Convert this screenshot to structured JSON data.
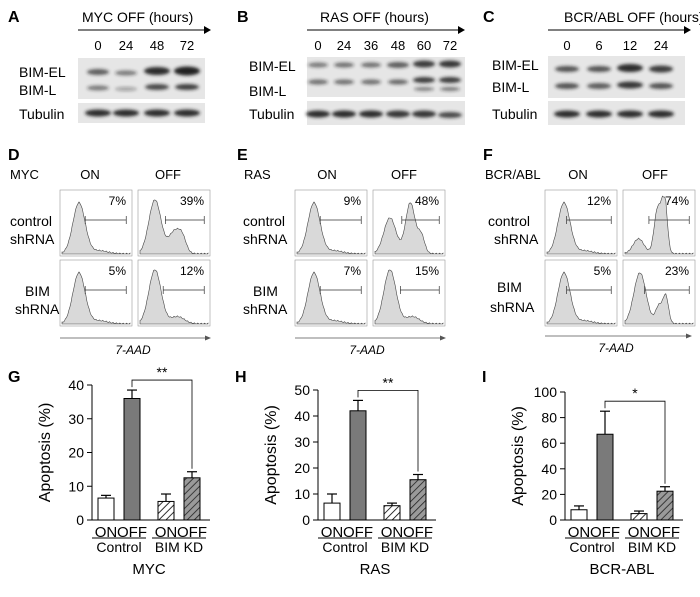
{
  "panels": {
    "A": {
      "letter": "A",
      "header": "MYC OFF (hours)",
      "times": [
        "0",
        "24",
        "48",
        "72"
      ],
      "rows": [
        "BIM-EL",
        "BIM-L",
        "Tubulin"
      ]
    },
    "B": {
      "letter": "B",
      "header": "RAS OFF (hours)",
      "times": [
        "0",
        "24",
        "36",
        "48",
        "60",
        "72"
      ],
      "rows": [
        "BIM-EL",
        "BIM-L",
        "Tubulin"
      ]
    },
    "C": {
      "letter": "C",
      "header": "BCR/ABL OFF (hours)",
      "times": [
        "0",
        "6",
        "12",
        "24"
      ],
      "rows": [
        "BIM-EL",
        "BIM-L",
        "Tubulin"
      ]
    },
    "D": {
      "letter": "D",
      "oncogene": "MYC",
      "on": "ON",
      "off": "OFF",
      "row1": [
        "control",
        "shRNA"
      ],
      "row2": [
        "BIM",
        "shRNA"
      ],
      "pct": [
        "7%",
        "39%",
        "5%",
        "12%"
      ],
      "xlabel": "7-AAD"
    },
    "E": {
      "letter": "E",
      "oncogene": "RAS",
      "on": "ON",
      "off": "OFF",
      "row1": [
        "control",
        "shRNA"
      ],
      "row2": [
        "BIM",
        "shRNA"
      ],
      "pct": [
        "9%",
        "48%",
        "7%",
        "15%"
      ],
      "xlabel": "7-AAD"
    },
    "F": {
      "letter": "F",
      "oncogene": "BCR/ABL",
      "on": "ON",
      "off": "OFF",
      "row1": [
        "control",
        "shRNA"
      ],
      "row2": [
        "BIM",
        "shRNA"
      ],
      "pct": [
        "12%",
        "74%",
        "5%",
        "23%"
      ],
      "xlabel": "7-AAD"
    }
  },
  "chart_data": [
    {
      "type": "bar",
      "letter": "G",
      "ylabel": "Apoptosis (%)",
      "ylim": [
        0,
        40
      ],
      "yticks": [
        "0",
        "10",
        "20",
        "30",
        "40"
      ],
      "categories": [
        "ON",
        "OFF",
        "ON",
        "OFF"
      ],
      "groups": [
        "Control",
        "BIM KD"
      ],
      "values": [
        6.5,
        36,
        5.5,
        12.5
      ],
      "errors": [
        0.8,
        2.5,
        2.2,
        1.8
      ],
      "significance": "**",
      "xlabel": "MYC"
    },
    {
      "type": "bar",
      "letter": "H",
      "ylabel": "Apoptosis (%)",
      "ylim": [
        0,
        50
      ],
      "yticks": [
        "0",
        "10",
        "20",
        "30",
        "40",
        "50"
      ],
      "categories": [
        "ON",
        "OFF",
        "ON",
        "OFF"
      ],
      "groups": [
        "Control",
        "BIM KD"
      ],
      "values": [
        6.5,
        42,
        5.5,
        15.5
      ],
      "errors": [
        3.5,
        4,
        1,
        2
      ],
      "significance": "**",
      "xlabel": "RAS"
    },
    {
      "type": "bar",
      "letter": "I",
      "ylabel": "Apoptosis (%)",
      "ylim": [
        0,
        100
      ],
      "yticks": [
        "0",
        "20",
        "40",
        "60",
        "80",
        "100"
      ],
      "categories": [
        "ON",
        "OFF",
        "ON",
        "OFF"
      ],
      "groups": [
        "Control",
        "BIM KD"
      ],
      "values": [
        8,
        67,
        5,
        22.5
      ],
      "errors": [
        3,
        18,
        2,
        3.5
      ],
      "significance": "*",
      "xlabel": "BCR-ABL"
    }
  ]
}
